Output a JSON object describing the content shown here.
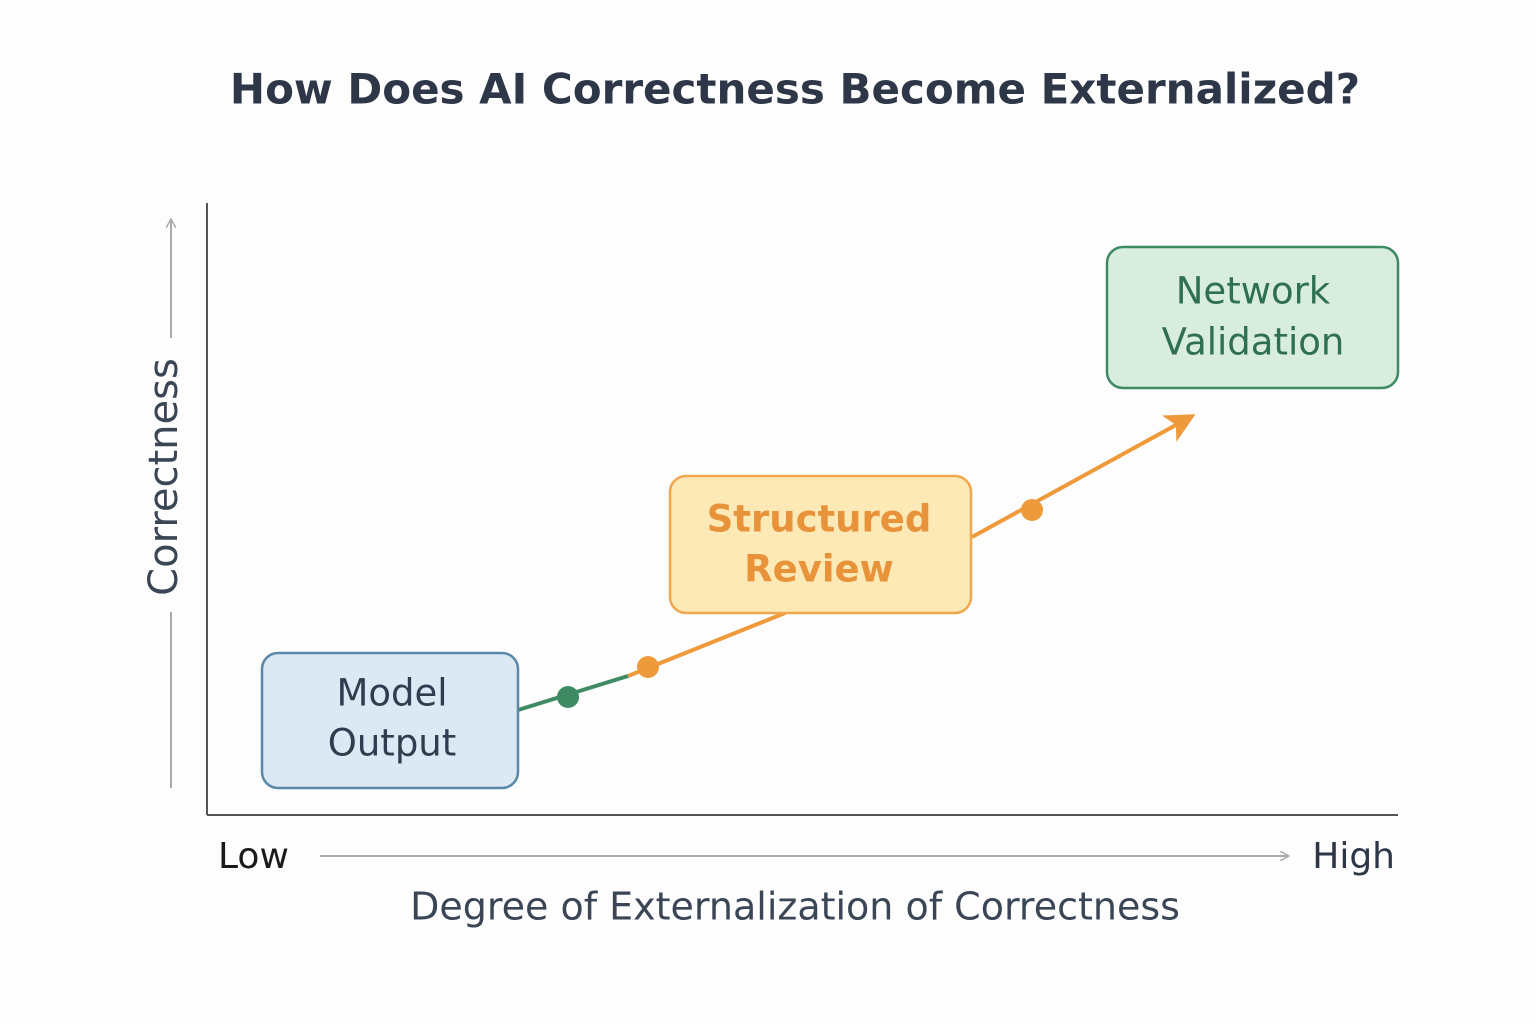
{
  "header": {
    "title": "How Does AI Correctness Become Externalized?"
  },
  "axes": {
    "y_label": "Correctness",
    "x_low": "Low",
    "x_high": "High",
    "x_label": "Degree of Externalization of Correctness"
  },
  "nodes": [
    {
      "lines": [
        "Model",
        "Output"
      ]
    },
    {
      "lines": [
        "Structured",
        "Review"
      ]
    },
    {
      "lines": [
        "Network",
        "Validation"
      ]
    }
  ]
}
